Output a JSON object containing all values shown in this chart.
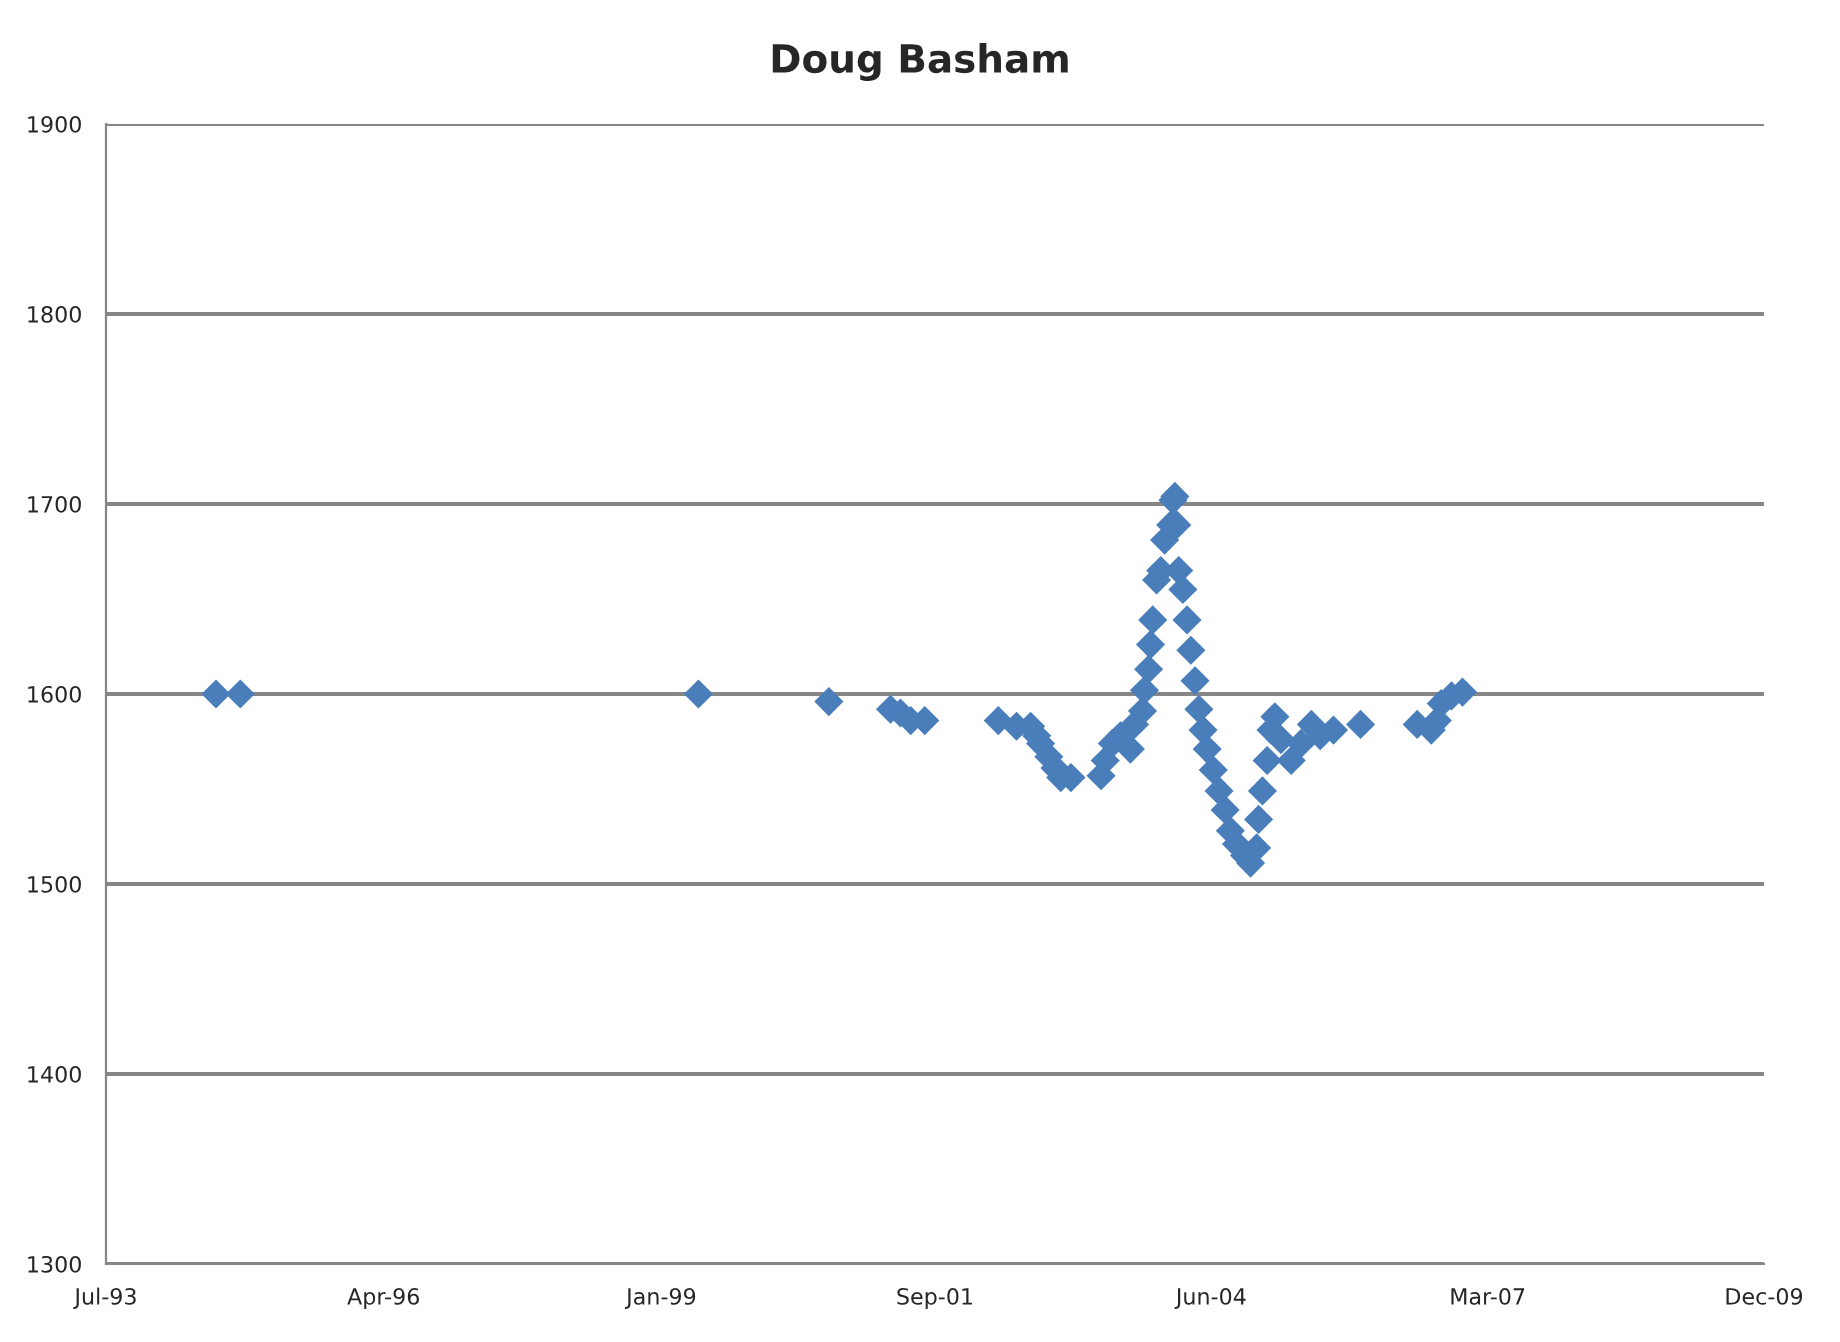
{
  "chart_data": {
    "type": "scatter",
    "title": "Doug Basham",
    "x": [
      "1994-08-03",
      "1994-10-30",
      "1999-05-15",
      "2000-08-29",
      "2001-04-09",
      "2001-05-15",
      "2001-06-21",
      "2001-08-11",
      "2002-05-04",
      "2002-07-09",
      "2002-08-29",
      "2002-09-20",
      "2002-10-04",
      "2002-11-03",
      "2002-11-25",
      "2002-12-16",
      "2003-01-22",
      "2003-05-11",
      "2003-05-26",
      "2003-06-21",
      "2003-07-20",
      "2003-08-25",
      "2003-09-09",
      "2003-10-08",
      "2003-10-15",
      "2003-10-30",
      "2003-11-06",
      "2003-11-14",
      "2003-11-28",
      "2003-12-13",
      "2003-12-27",
      "2004-01-18",
      "2004-01-26",
      "2004-02-02",
      "2004-02-09",
      "2004-02-16",
      "2004-03-02",
      "2004-03-17",
      "2004-03-31",
      "2004-04-15",
      "2004-04-29",
      "2004-05-14",
      "2004-05-29",
      "2004-06-20",
      "2004-07-11",
      "2004-08-02",
      "2004-08-21",
      "2004-09-12",
      "2004-10-11",
      "2004-11-02",
      "2004-11-24",
      "2004-12-01",
      "2004-12-15",
      "2005-01-01",
      "2005-01-15",
      "2005-01-29",
      "2005-02-20",
      "2005-03-29",
      "2005-05-04",
      "2005-06-10",
      "2005-07-12",
      "2005-08-29",
      "2005-12-05",
      "2006-06-28",
      "2006-08-18",
      "2006-09-09",
      "2006-09-23",
      "2006-10-30",
      "2006-12-09"
    ],
    "series": [
      {
        "color": "#4a7ebb",
        "values": [
          1600,
          1600,
          1600,
          1596,
          1592,
          1590,
          1586,
          1586,
          1586,
          1583,
          1583,
          1578,
          1574,
          1567,
          1561,
          1556,
          1556,
          1557,
          1565,
          1574,
          1578,
          1571,
          1584,
          1591,
          1602,
          1613,
          1626,
          1639,
          1660,
          1665,
          1681,
          1689,
          1702,
          1704,
          1689,
          1665,
          1655,
          1639,
          1623,
          1607,
          1592,
          1581,
          1571,
          1560,
          1549,
          1539,
          1528,
          1521,
          1515,
          1511,
          1519,
          1534,
          1549,
          1565,
          1581,
          1588,
          1576,
          1565,
          1574,
          1584,
          1578,
          1581,
          1584,
          1584,
          1581,
          1586,
          1595,
          1599,
          1601
        ]
      }
    ],
    "xlim": [
      "1993-07-01",
      "2009-12-04"
    ],
    "xticks": [
      {
        "value": "1993-07-01",
        "label": "Jul-93"
      },
      {
        "value": "1996-04-01",
        "label": "Apr-96"
      },
      {
        "value": "1999-01-01",
        "label": "Jan-99"
      },
      {
        "value": "2001-09-17",
        "label": "Sep-01"
      },
      {
        "value": "2004-06-13",
        "label": "Jun-04"
      },
      {
        "value": "2007-03-10",
        "label": "Mar-07"
      },
      {
        "value": "2009-12-04",
        "label": "Dec-09"
      }
    ],
    "ylim": [
      1300,
      1900
    ],
    "yticks": [
      1300,
      1400,
      1500,
      1600,
      1700,
      1800,
      1900
    ],
    "grid": "y",
    "marker": "diamond",
    "legend": false
  }
}
